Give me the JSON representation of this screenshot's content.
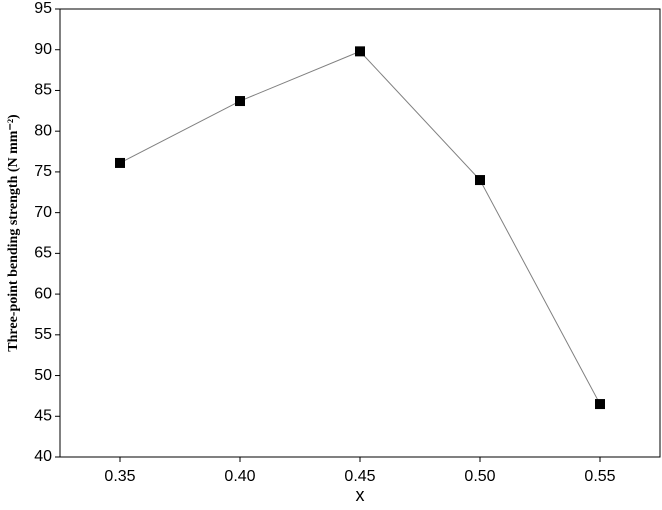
{
  "chart_data": {
    "type": "line",
    "x_label": "x",
    "y_label": "Three-point bending strength (N mm⁻²)",
    "x": [
      0.35,
      0.4,
      0.45,
      0.5,
      0.55
    ],
    "series": [
      {
        "color": "#000000",
        "line_color": "#808080",
        "values": [
          76.1,
          83.7,
          89.8,
          74.0,
          46.5
        ]
      }
    ],
    "xlim": [
      0.325,
      0.575
    ],
    "xticks": [
      0.35,
      {
        "value": 0.4,
        "label": "0.40"
      },
      0.45,
      {
        "value": 0.5,
        "label": "0.50"
      },
      0.55
    ],
    "ylim": [
      40,
      95
    ],
    "yticks": [
      40,
      45,
      50,
      55,
      60,
      65,
      70,
      75,
      80,
      85,
      90,
      95
    ],
    "grid": false
  }
}
